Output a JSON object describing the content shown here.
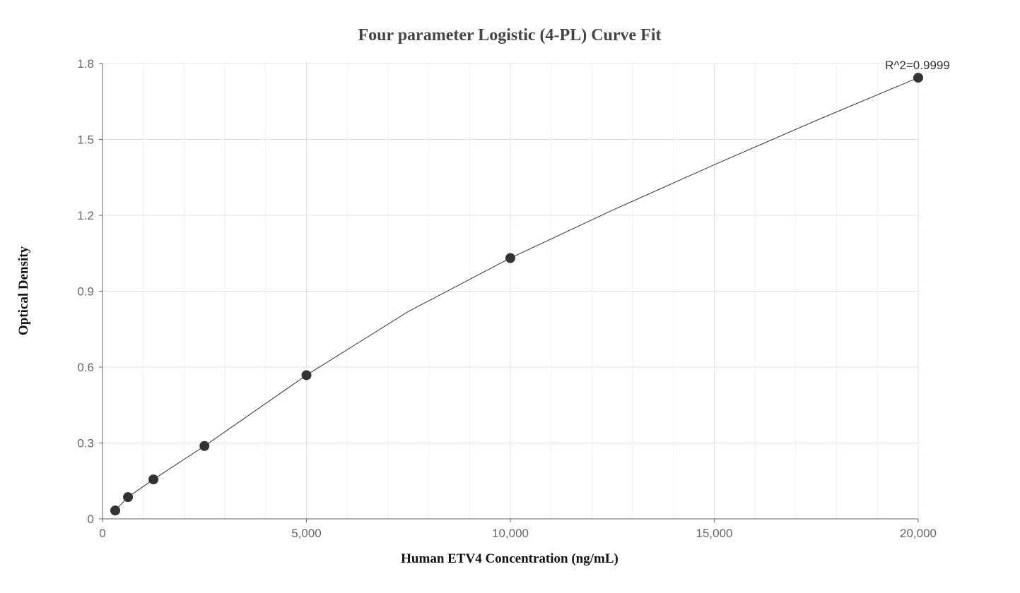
{
  "chart_data": {
    "type": "scatter",
    "title": "Four parameter Logistic (4-PL) Curve Fit",
    "xlabel": "Human ETV4 Concentration (ng/mL)",
    "ylabel": "Optical Density",
    "xlim": [
      0,
      20000
    ],
    "ylim": [
      0,
      1.8
    ],
    "x_ticks": [
      0,
      5000,
      10000,
      15000,
      20000
    ],
    "x_tick_labels": [
      "0",
      "5,000",
      "10,000",
      "15,000",
      "20,000"
    ],
    "y_ticks": [
      0,
      0.3,
      0.6,
      0.9,
      1.2,
      1.5,
      1.8
    ],
    "y_tick_labels": [
      "0",
      "0.3",
      "0.6",
      "0.9",
      "1.2",
      "1.5",
      "1.8"
    ],
    "grid": true,
    "series": [
      {
        "kind": "points",
        "x": [
          312.5,
          625,
          1250,
          2500,
          5000,
          10000,
          20000
        ],
        "y": [
          0.033,
          0.086,
          0.156,
          0.288,
          0.568,
          1.031,
          1.744
        ]
      },
      {
        "kind": "fit-line",
        "x": [
          312.5,
          625,
          1250,
          2500,
          5000,
          7500,
          10000,
          12500,
          15000,
          17500,
          20000
        ],
        "y": [
          0.033,
          0.086,
          0.156,
          0.288,
          0.568,
          0.82,
          1.031,
          1.22,
          1.4,
          1.575,
          1.744
        ]
      }
    ],
    "annotation": "R^2=0.9999",
    "colors": {
      "points": "#333333",
      "line": "#333333",
      "grid_major": "#dde3ea",
      "grid_minor": "#eef1f5",
      "axis": "#666666"
    }
  }
}
